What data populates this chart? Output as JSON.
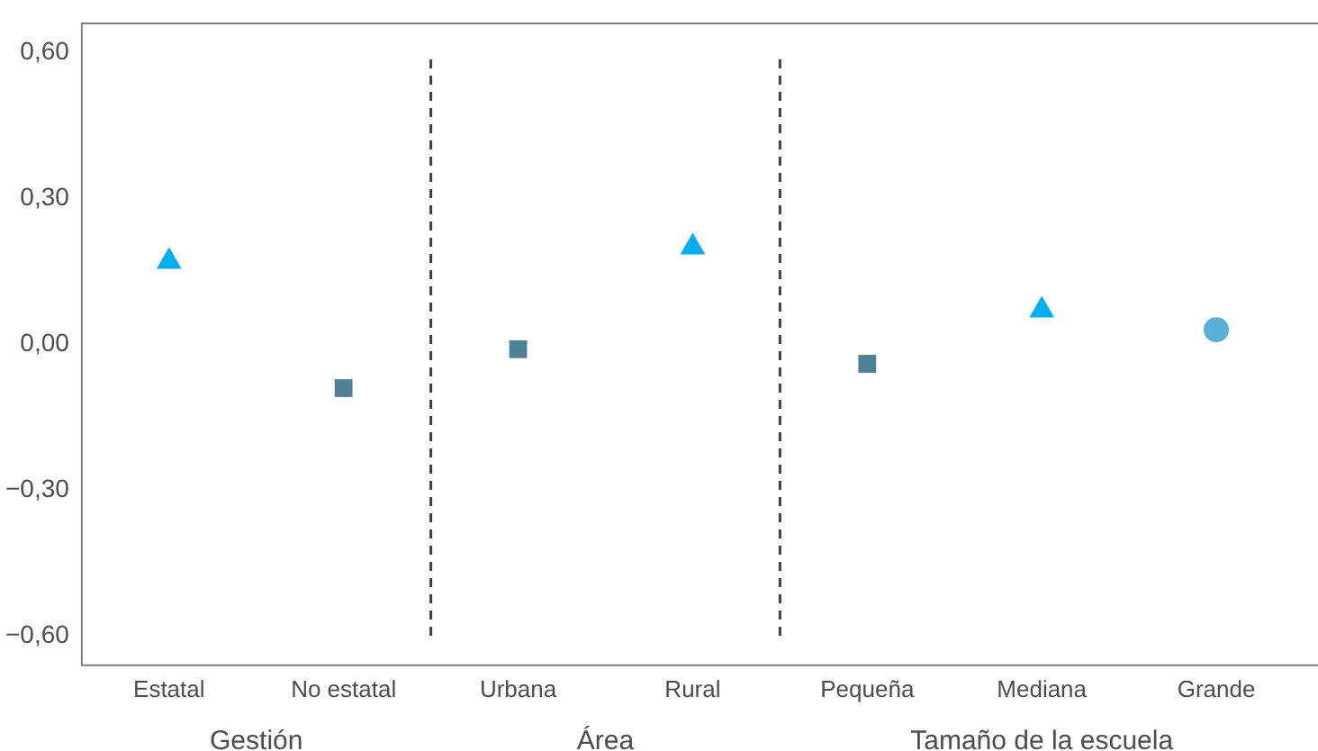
{
  "chart_data": {
    "type": "scatter",
    "categories": [
      "Estatal",
      "No estatal",
      "Urbana",
      "Rural",
      "Pequeña",
      "Mediana",
      "Grande"
    ],
    "series": [
      {
        "color": "#00aeef",
        "marker": "triangle",
        "values": [
          0.17,
          null,
          null,
          0.2,
          null,
          0.07,
          null
        ]
      },
      {
        "color": "#4f8196",
        "marker": "square",
        "values": [
          null,
          -0.09,
          -0.01,
          null,
          -0.04,
          null,
          null
        ]
      },
      {
        "color": "#5aafd6",
        "marker": "circle",
        "values": [
          null,
          null,
          null,
          null,
          null,
          null,
          0.03
        ]
      }
    ],
    "ylim": [
      -0.66,
      0.66
    ],
    "yticks": [
      {
        "value": -0.6,
        "label": "−0,60"
      },
      {
        "value": -0.3,
        "label": "−0,30"
      },
      {
        "value": 0,
        "label": "0,00"
      },
      {
        "value": 0.3,
        "label": "0,30"
      },
      {
        "value": 0.6,
        "label": "0,60"
      }
    ],
    "annotations": [
      "Gestión",
      "Área",
      "Tamaño de la escuela"
    ],
    "grid": false,
    "legend": false
  }
}
